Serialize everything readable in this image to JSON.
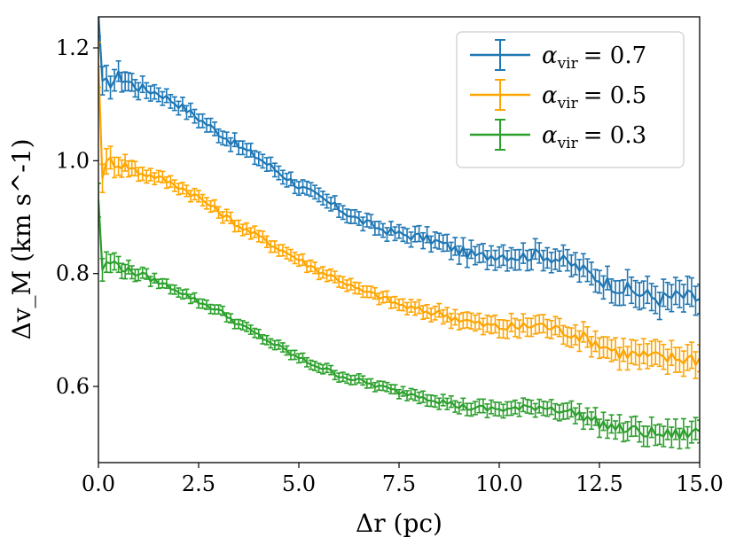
{
  "chart_data": {
    "type": "line",
    "title": "",
    "xlabel": "Δr (pc)",
    "ylabel": "Δv_M (km s^-1)",
    "xlim": [
      0,
      15
    ],
    "ylim": [
      0.465,
      1.255
    ],
    "xticks": [
      0,
      2.5,
      5,
      7.5,
      10,
      12.5,
      15
    ],
    "xtick_labels": [
      "0.0",
      "2.5",
      "5.0",
      "7.5",
      "10.0",
      "12.5",
      "15.0"
    ],
    "yticks": [
      0.6,
      0.8,
      1.0,
      1.2
    ],
    "ytick_labels": [
      "0.6",
      "0.8",
      "1.0",
      "1.2"
    ],
    "grid": false,
    "legend_position": "top-right",
    "x": [
      0,
      0.1,
      0.3,
      0.5,
      0.75,
      1,
      1.5,
      2,
      2.5,
      3,
      3.5,
      4,
      4.5,
      5,
      5.5,
      6,
      6.5,
      7,
      7.5,
      8,
      8.5,
      9,
      9.5,
      10,
      10.5,
      11,
      11.5,
      12,
      12.5,
      13,
      13.5,
      14,
      14.5,
      15
    ],
    "series": [
      {
        "name": "α_vir = 0.7",
        "legend_symbol": "α",
        "legend_sub": "vir",
        "legend_value": "= 0.7",
        "color": "#1f77b4",
        "values": [
          1.26,
          1.13,
          1.14,
          1.15,
          1.14,
          1.13,
          1.12,
          1.1,
          1.075,
          1.05,
          1.025,
          1.005,
          0.98,
          0.955,
          0.935,
          0.915,
          0.895,
          0.88,
          0.87,
          0.865,
          0.855,
          0.84,
          0.83,
          0.835,
          0.83,
          0.835,
          0.825,
          0.81,
          0.79,
          0.775,
          0.765,
          0.755,
          0.76,
          0.755
        ],
        "errors": [
          0.04,
          0.025,
          0.02,
          0.018,
          0.016,
          0.015,
          0.012,
          0.012,
          0.012,
          0.012,
          0.012,
          0.012,
          0.012,
          0.012,
          0.012,
          0.012,
          0.012,
          0.012,
          0.012,
          0.014,
          0.014,
          0.016,
          0.016,
          0.018,
          0.018,
          0.018,
          0.018,
          0.02,
          0.02,
          0.022,
          0.024,
          0.024,
          0.024,
          0.026
        ]
      },
      {
        "name": "α_vir = 0.5",
        "legend_symbol": "α",
        "legend_sub": "vir",
        "legend_value": "= 0.5",
        "color": "#ffa500",
        "values": [
          1.17,
          0.98,
          1.0,
          0.995,
          0.99,
          0.98,
          0.97,
          0.955,
          0.935,
          0.91,
          0.885,
          0.865,
          0.845,
          0.825,
          0.805,
          0.79,
          0.77,
          0.76,
          0.745,
          0.735,
          0.73,
          0.72,
          0.71,
          0.705,
          0.705,
          0.71,
          0.7,
          0.69,
          0.675,
          0.66,
          0.655,
          0.65,
          0.65,
          0.65
        ],
        "errors": [
          0.04,
          0.025,
          0.02,
          0.016,
          0.014,
          0.012,
          0.01,
          0.01,
          0.01,
          0.01,
          0.01,
          0.01,
          0.01,
          0.01,
          0.01,
          0.01,
          0.01,
          0.01,
          0.01,
          0.012,
          0.012,
          0.014,
          0.014,
          0.016,
          0.016,
          0.016,
          0.016,
          0.018,
          0.018,
          0.02,
          0.022,
          0.022,
          0.022,
          0.024
        ]
      },
      {
        "name": "α_vir = 0.3",
        "legend_symbol": "α",
        "legend_sub": "vir",
        "legend_value": "= 0.3",
        "color": "#2ca02c",
        "values": [
          0.93,
          0.81,
          0.82,
          0.815,
          0.805,
          0.8,
          0.785,
          0.77,
          0.75,
          0.735,
          0.71,
          0.69,
          0.67,
          0.65,
          0.635,
          0.62,
          0.61,
          0.6,
          0.59,
          0.585,
          0.575,
          0.565,
          0.56,
          0.56,
          0.56,
          0.565,
          0.56,
          0.55,
          0.535,
          0.525,
          0.52,
          0.515,
          0.515,
          0.52
        ],
        "errors": [
          0.03,
          0.02,
          0.016,
          0.014,
          0.012,
          0.01,
          0.008,
          0.008,
          0.008,
          0.008,
          0.008,
          0.008,
          0.008,
          0.008,
          0.008,
          0.008,
          0.008,
          0.008,
          0.008,
          0.01,
          0.01,
          0.01,
          0.012,
          0.012,
          0.012,
          0.012,
          0.014,
          0.014,
          0.016,
          0.016,
          0.018,
          0.018,
          0.018,
          0.02
        ]
      }
    ]
  }
}
